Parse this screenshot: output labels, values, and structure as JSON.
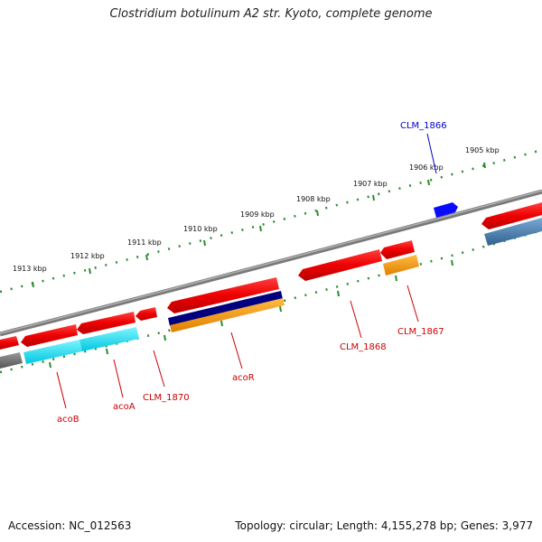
{
  "title": "Clostridium botulinum A2 str. Kyoto, complete genome",
  "accession": "Accession: NC_012563",
  "topology": "Topology: circular; Length: 4,155,278 bp; Genes: 3,977",
  "scale_labels": [
    "1913 kbp",
    "1912 kbp",
    "1911 kbp",
    "1910 kbp",
    "1909 kbp",
    "1908 kbp",
    "1907 kbp",
    "1906 kbp",
    "1905 kbp"
  ],
  "gene_labels": [
    {
      "name": "CLM_1866",
      "color": "#0000cc"
    },
    {
      "name": "CLM_1867",
      "color": "#cc0000"
    },
    {
      "name": "CLM_1868",
      "color": "#cc0000"
    },
    {
      "name": "acoR",
      "color": "#cc0000"
    },
    {
      "name": "CLM_1870",
      "color": "#cc0000"
    },
    {
      "name": "acoA",
      "color": "#cc0000"
    },
    {
      "name": "acoB",
      "color": "#cc0000"
    }
  ],
  "colors": {
    "backbone": "#808080",
    "tick_green": "#2e8b2e",
    "gene_red": "#e60000",
    "gene_cyan": "#00e0f0",
    "gene_navy": "#000080",
    "gene_orange": "#ff9900",
    "gene_blue": "#0000ff",
    "gene_steel": "#4682b4",
    "gene_gray": "#6e6e6e"
  }
}
